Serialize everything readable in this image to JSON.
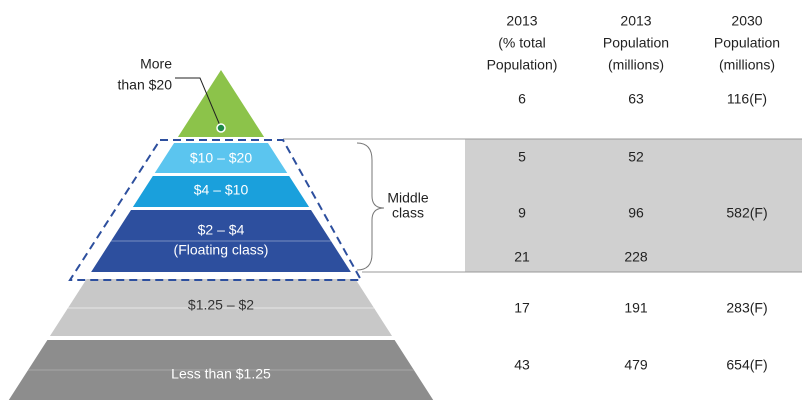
{
  "table": {
    "headers": [
      [
        "2013",
        "(% total",
        "Population)"
      ],
      [
        "2013",
        "Population",
        "(millions)"
      ],
      [
        "2030",
        "Population",
        "(millions)"
      ]
    ],
    "rows": [
      [
        "6",
        "63",
        "116(F)"
      ],
      [
        "5",
        "52",
        null
      ],
      [
        "9",
        "96",
        "582(F)"
      ],
      [
        "21",
        "228",
        null
      ],
      [
        "17",
        "191",
        "283(F)"
      ],
      [
        "43",
        "479",
        "654(F)"
      ]
    ]
  },
  "pyramid": {
    "layers": [
      {
        "label": [
          "More",
          "than $20"
        ]
      },
      {
        "label": [
          "$10 – $20"
        ]
      },
      {
        "label": [
          "$4 – $10"
        ]
      },
      {
        "label": [
          "$2 – $4",
          "(Floating class)"
        ]
      },
      {
        "label": [
          "$1.25 – $2"
        ]
      },
      {
        "label": [
          "Less than $1.25"
        ]
      }
    ],
    "group_label": [
      "Middle",
      "class"
    ]
  }
}
